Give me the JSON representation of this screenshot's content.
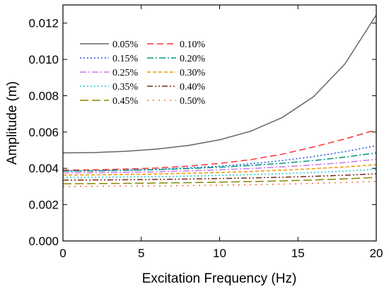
{
  "chart_data": {
    "type": "line",
    "xlabel": "Excitation Frequency (Hz)",
    "ylabel": "Amplitude (m)",
    "xlim": [
      0,
      20
    ],
    "ylim": [
      0,
      0.013
    ],
    "xticks": [
      0,
      5,
      10,
      15,
      20
    ],
    "xtick_labels": [
      "0",
      "5",
      "10",
      "15",
      "20"
    ],
    "yticks": [
      0,
      0.002,
      0.004,
      0.006,
      0.008,
      0.01,
      0.012
    ],
    "ytick_labels": [
      "0.000",
      "0.002",
      "0.004",
      "0.006",
      "0.008",
      "0.010",
      "0.012"
    ],
    "grid": false,
    "legend_position": "top-left",
    "x": [
      0,
      2,
      4,
      6,
      8,
      10,
      12,
      14,
      16,
      18,
      20
    ],
    "series": [
      {
        "name": "0.05%",
        "color": "#666666",
        "dash": "solid",
        "values": [
          0.00485,
          0.00487,
          0.00494,
          0.00506,
          0.00526,
          0.00557,
          0.00605,
          0.0068,
          0.00795,
          0.00975,
          0.01245
        ]
      },
      {
        "name": "0.10%",
        "color": "#ff3333",
        "dash": "dash",
        "values": [
          0.0039,
          0.00392,
          0.00396,
          0.00402,
          0.00412,
          0.00427,
          0.00448,
          0.00478,
          0.00518,
          0.00562,
          0.00612
        ]
      },
      {
        "name": "0.15%",
        "color": "#2255dd",
        "dash": "dot",
        "values": [
          0.00385,
          0.00387,
          0.0039,
          0.00395,
          0.00402,
          0.00412,
          0.00425,
          0.00443,
          0.00465,
          0.00492,
          0.00525
        ]
      },
      {
        "name": "0.20%",
        "color": "#00997a",
        "dash": "dashdot",
        "values": [
          0.00385,
          0.00386,
          0.00389,
          0.00393,
          0.00399,
          0.00406,
          0.00416,
          0.00428,
          0.00443,
          0.00462,
          0.00485
        ]
      },
      {
        "name": "0.25%",
        "color": "#cc77ee",
        "dash": "dashdot",
        "values": [
          0.00375,
          0.00376,
          0.00378,
          0.00381,
          0.00386,
          0.00392,
          0.00399,
          0.00408,
          0.00419,
          0.00432,
          0.0045
        ]
      },
      {
        "name": "0.30%",
        "color": "#ee9900",
        "dash": "shortdash",
        "values": [
          0.00363,
          0.00364,
          0.00366,
          0.00369,
          0.00373,
          0.00377,
          0.00383,
          0.0039,
          0.00398,
          0.00408,
          0.0042
        ]
      },
      {
        "name": "0.35%",
        "color": "#22cccc",
        "dash": "dot",
        "values": [
          0.0035,
          0.00351,
          0.00352,
          0.00354,
          0.00357,
          0.00361,
          0.00365,
          0.00371,
          0.00377,
          0.00385,
          0.00395
        ]
      },
      {
        "name": "0.40%",
        "color": "#7a2a1a",
        "dash": "dashdotdot",
        "values": [
          0.00335,
          0.00336,
          0.00337,
          0.00339,
          0.00341,
          0.00344,
          0.00347,
          0.00351,
          0.00356,
          0.00362,
          0.0037
        ]
      },
      {
        "name": "0.45%",
        "color": "#888800",
        "dash": "longdash",
        "values": [
          0.00315,
          0.00316,
          0.00317,
          0.00319,
          0.00321,
          0.00324,
          0.00327,
          0.00331,
          0.00336,
          0.00342,
          0.0035
        ]
      },
      {
        "name": "0.50%",
        "color": "#ff6633",
        "dash": "sparsedot",
        "values": [
          0.003,
          0.00301,
          0.00302,
          0.00303,
          0.00305,
          0.00307,
          0.0031,
          0.00313,
          0.00317,
          0.00322,
          0.00328
        ]
      }
    ]
  }
}
